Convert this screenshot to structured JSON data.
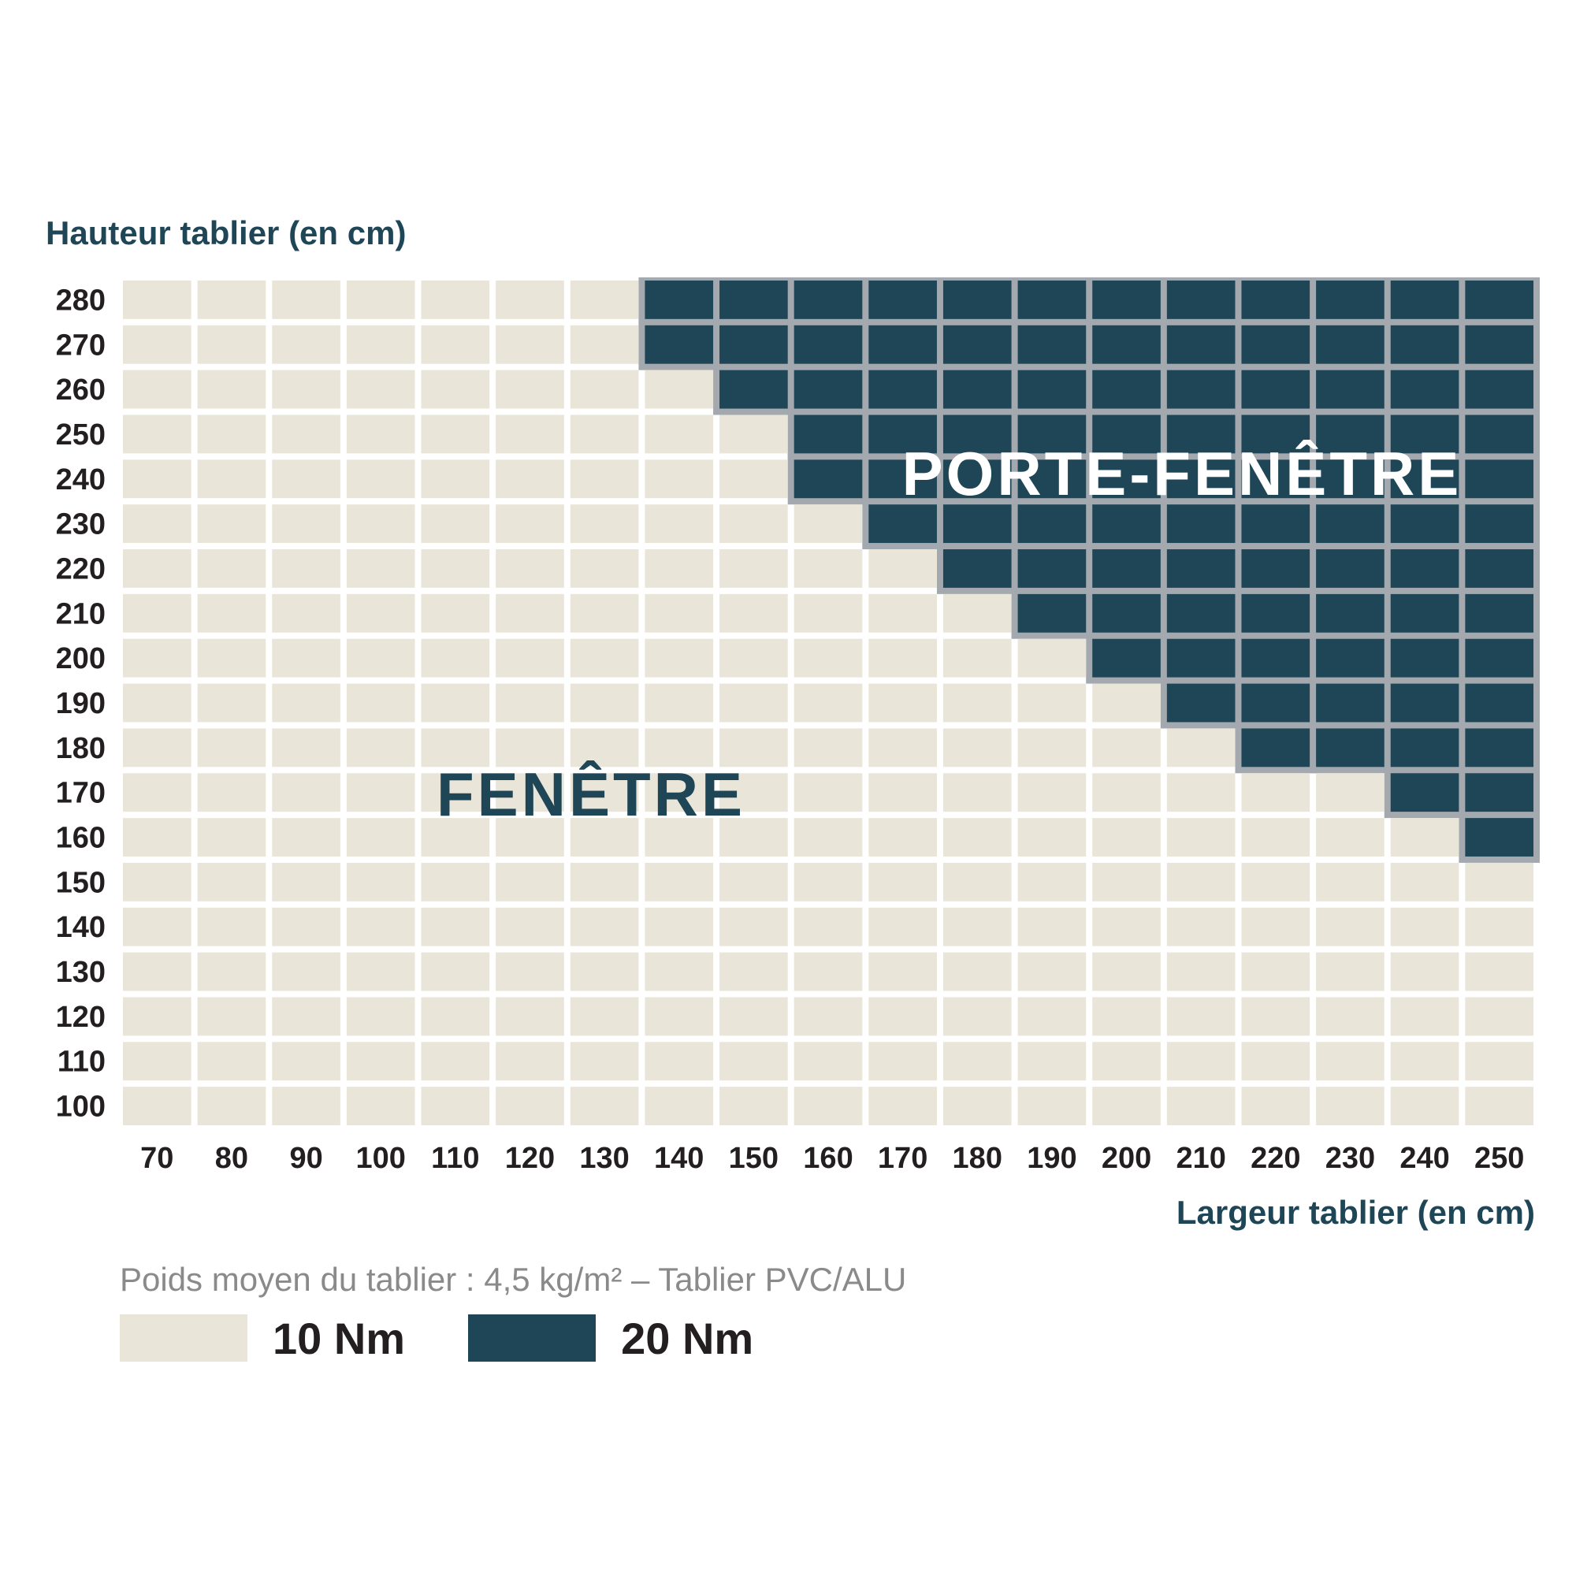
{
  "chart_data": {
    "type": "heatmap",
    "ylabel": "Hauteur tablier (en cm)",
    "xlabel": "Largeur tablier (en cm)",
    "x": [
      70,
      80,
      90,
      100,
      110,
      120,
      130,
      140,
      150,
      160,
      170,
      180,
      190,
      200,
      210,
      220,
      230,
      240,
      250
    ],
    "y": [
      100,
      110,
      120,
      130,
      140,
      150,
      160,
      170,
      180,
      190,
      200,
      210,
      220,
      230,
      240,
      250,
      260,
      270,
      280
    ],
    "threshold_height_by_width": {
      "140": 270,
      "150": 260,
      "160": 240,
      "170": 230,
      "180": 220,
      "190": 210,
      "200": 200,
      "210": 190,
      "220": 180,
      "230": 180,
      "240": 170,
      "250": 160
    },
    "values_note": "Cells with height >= threshold for their width are 20 Nm; all others are 10 Nm",
    "region_labels": [
      {
        "text": "FENÊTRE",
        "color": "#1f4656"
      },
      {
        "text": "PORTE-FENÊTRE",
        "color": "#ffffff"
      }
    ],
    "legend": [
      {
        "label": "10 Nm",
        "value": 10,
        "color": "#e9e5d9"
      },
      {
        "label": "20 Nm",
        "value": 20,
        "color": "#1f4656"
      }
    ],
    "colors": {
      "low": "#e9e5d9",
      "high": "#1f4656",
      "grid_gap": "#ffffff",
      "high_border": "#a3a9ae",
      "tick_text": "#231f20",
      "axis_title": "#1f4656"
    }
  },
  "note": "Poids moyen du tablier : 4,5 kg/m² – Tablier PVC/ALU"
}
